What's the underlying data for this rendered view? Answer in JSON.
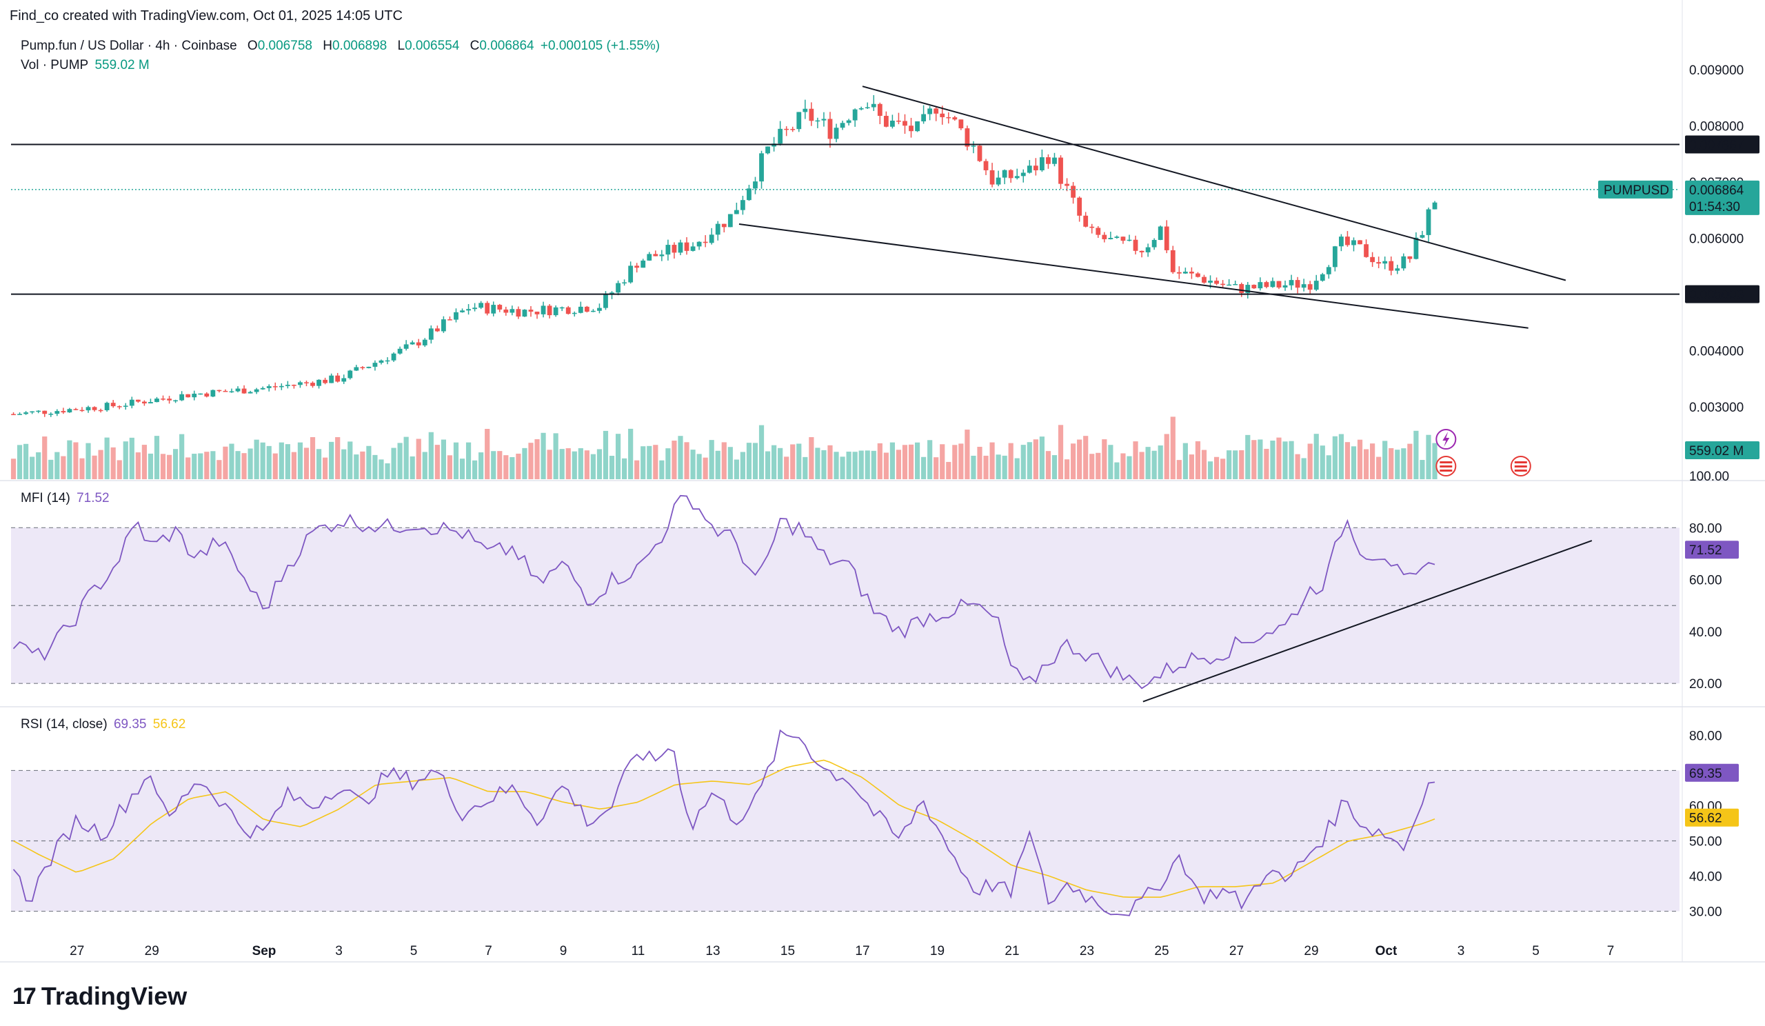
{
  "header": {
    "created_by": "Find_co created with TradingView.com, Oct 01, 2025 14:05 UTC"
  },
  "legend": {
    "symbol": "Pump.fun / US Dollar · 4h · Coinbase",
    "o_label": "O",
    "o": "0.006758",
    "h_label": "H",
    "h": "0.006898",
    "l_label": "L",
    "l": "0.006554",
    "c_label": "C",
    "c": "0.006864",
    "change": "+0.000105 (+1.55%)",
    "vol_label": "Vol · PUMP",
    "vol": "559.02 M",
    "mfi_label": "MFI (14)",
    "mfi": "71.52",
    "rsi_label": "RSI (14, close)",
    "rsi": "69.35",
    "rsi_ma": "56.62"
  },
  "badges": {
    "resistance": "0.007667",
    "support": "0.005003",
    "symbol_tag": "PUMPUSD",
    "last_price": "0.006864",
    "countdown": "01:54:30",
    "volume": "559.02 M",
    "mfi": "71.52",
    "rsi": "69.35",
    "rsi_ma": "56.62"
  },
  "brand": {
    "name": "TradingView",
    "mark": "17"
  },
  "colors": {
    "up": "#26a69a",
    "down": "#ef5350",
    "vol_up": "#8fd4c9",
    "vol_down": "#f5a5a3",
    "mfi": "#7e57c2",
    "rsi": "#7e57c2",
    "rsi_ma": "#f5c518",
    "band": "#ede8f7",
    "grid": "#f0f3fa"
  },
  "chart_data": [
    {
      "type": "candlestick",
      "title": "Pump.fun / US Dollar · 4h · Coinbase",
      "y_ticks": [
        "0.009000",
        "0.008000",
        "0.007000",
        "0.006000",
        "0.005000",
        "0.004000",
        "0.003000"
      ],
      "ylim": [
        0.00165,
        0.0095
      ],
      "x_ticks": [
        "27",
        "29",
        "Sep",
        "3",
        "5",
        "7",
        "9",
        "11",
        "13",
        "15",
        "17",
        "19",
        "21",
        "23",
        "25",
        "27",
        "29",
        "Oct",
        "3",
        "5",
        "7"
      ],
      "x_days": [
        -5,
        -3,
        0,
        2,
        4,
        6,
        8,
        10,
        12,
        14,
        16,
        18,
        20,
        22,
        24,
        26,
        28,
        30,
        32,
        34,
        36
      ],
      "close_path": [
        [
          -6.7,
          0.00287
        ],
        [
          -4,
          0.00302
        ],
        [
          -2,
          0.00322
        ],
        [
          0,
          0.00333
        ],
        [
          2,
          0.0035
        ],
        [
          4,
          0.0041
        ],
        [
          5.5,
          0.00478
        ],
        [
          7,
          0.0047
        ],
        [
          9,
          0.0048
        ],
        [
          10,
          0.0056
        ],
        [
          11.5,
          0.0059
        ],
        [
          12.5,
          0.0064
        ],
        [
          13.5,
          0.0076
        ],
        [
          14.5,
          0.0082
        ],
        [
          15.2,
          0.0079
        ],
        [
          16,
          0.0085
        ],
        [
          16.5,
          0.0081
        ],
        [
          17.5,
          0.0079
        ],
        [
          18,
          0.0084
        ],
        [
          19,
          0.0076
        ],
        [
          19.5,
          0.007
        ],
        [
          20.5,
          0.0072
        ],
        [
          21,
          0.0075
        ],
        [
          21.5,
          0.0068
        ],
        [
          22,
          0.0061
        ],
        [
          22.8,
          0.0059
        ],
        [
          23.5,
          0.0058
        ],
        [
          24,
          0.0062
        ],
        [
          24.3,
          0.0054
        ],
        [
          25,
          0.0053
        ],
        [
          26,
          0.0051
        ],
        [
          27,
          0.00515
        ],
        [
          28,
          0.0052
        ],
        [
          28.8,
          0.0059
        ],
        [
          29.3,
          0.0058
        ],
        [
          30,
          0.0055
        ],
        [
          30.6,
          0.0056
        ],
        [
          31,
          0.0062
        ],
        [
          31.4,
          0.00686
        ]
      ],
      "resistance": 0.007667,
      "support": 0.005003,
      "wedge_upper": [
        [
          16,
          0.0087
        ],
        [
          34.8,
          0.00525
        ]
      ],
      "wedge_lower": [
        [
          12.7,
          0.00625
        ],
        [
          33.8,
          0.0044
        ]
      ],
      "last": 0.006864
    },
    {
      "type": "bar",
      "title": "Vol · PUMP",
      "last": "559.02 M"
    },
    {
      "type": "line",
      "title": "MFI (14)",
      "y_ticks": [
        100,
        80,
        60,
        40,
        20
      ],
      "ylim": [
        15,
        100
      ],
      "bands": [
        20,
        50,
        80
      ],
      "path": [
        [
          -6.7,
          35
        ],
        [
          -6,
          30
        ],
        [
          -5.3,
          40
        ],
        [
          -4.6,
          55
        ],
        [
          -4,
          65
        ],
        [
          -3.4,
          82
        ],
        [
          -3,
          72
        ],
        [
          -2.4,
          79
        ],
        [
          -1.8,
          68
        ],
        [
          -1.2,
          75
        ],
        [
          -0.6,
          62
        ],
        [
          0,
          48
        ],
        [
          0.6,
          65
        ],
        [
          1.3,
          78
        ],
        [
          2,
          83
        ],
        [
          2.6,
          82
        ],
        [
          3.3,
          80
        ],
        [
          4,
          82
        ],
        [
          4.6,
          80
        ],
        [
          5.3,
          78
        ],
        [
          6,
          70
        ],
        [
          6.7,
          72
        ],
        [
          7.3,
          58
        ],
        [
          8,
          66
        ],
        [
          8.7,
          52
        ],
        [
          9.3,
          60
        ],
        [
          10,
          64
        ],
        [
          10.6,
          76
        ],
        [
          11,
          88
        ],
        [
          11.4,
          92
        ],
        [
          12,
          80
        ],
        [
          12.6,
          75
        ],
        [
          13.2,
          58
        ],
        [
          13.8,
          82
        ],
        [
          14.3,
          80
        ],
        [
          15,
          68
        ],
        [
          15.6,
          66
        ],
        [
          16.3,
          48
        ],
        [
          17,
          40
        ],
        [
          17.6,
          45
        ],
        [
          18.3,
          48
        ],
        [
          19,
          50
        ],
        [
          19.6,
          44
        ],
        [
          20,
          25
        ],
        [
          20.4,
          18
        ],
        [
          20.9,
          28
        ],
        [
          21.5,
          35
        ],
        [
          22.2,
          30
        ],
        [
          22.8,
          24
        ],
        [
          23.3,
          20
        ],
        [
          23.8,
          22
        ],
        [
          24.5,
          28
        ],
        [
          25,
          30
        ],
        [
          25.6,
          32
        ],
        [
          26.2,
          36
        ],
        [
          26.8,
          40
        ],
        [
          27.3,
          42
        ],
        [
          27.9,
          55
        ],
        [
          28.4,
          60
        ],
        [
          28.9,
          84
        ],
        [
          29.4,
          70
        ],
        [
          30,
          70
        ],
        [
          30.5,
          58
        ],
        [
          31,
          62
        ],
        [
          31.4,
          71.52
        ]
      ],
      "trendline": [
        [
          23.5,
          13
        ],
        [
          35.5,
          75
        ]
      ],
      "last": 71.52
    },
    {
      "type": "line",
      "title": "RSI (14, close)",
      "y_ticks": [
        80,
        60,
        50,
        40,
        30
      ],
      "ylim": [
        26,
        84
      ],
      "bands": [
        30,
        50,
        70
      ],
      "series": [
        {
          "name": "RSI",
          "path": [
            [
              -6.7,
              42
            ],
            [
              -6.3,
              33
            ],
            [
              -5.7,
              45
            ],
            [
              -5,
              56
            ],
            [
              -4.3,
              52
            ],
            [
              -3.6,
              62
            ],
            [
              -3,
              70
            ],
            [
              -2.6,
              55
            ],
            [
              -1.8,
              68
            ],
            [
              -1.2,
              62
            ],
            [
              -0.6,
              54
            ],
            [
              0,
              52
            ],
            [
              0.6,
              63
            ],
            [
              1.3,
              60
            ],
            [
              2,
              66
            ],
            [
              2.6,
              60
            ],
            [
              3.3,
              69
            ],
            [
              4,
              67
            ],
            [
              4.6,
              70
            ],
            [
              5.3,
              58
            ],
            [
              6,
              62
            ],
            [
              6.7,
              65
            ],
            [
              7.3,
              56
            ],
            [
              8,
              66
            ],
            [
              8.7,
              55
            ],
            [
              9.3,
              60
            ],
            [
              10,
              76
            ],
            [
              10.4,
              72
            ],
            [
              10.9,
              78
            ],
            [
              11.4,
              54
            ],
            [
              12,
              64
            ],
            [
              12.6,
              56
            ],
            [
              13.2,
              62
            ],
            [
              13.8,
              79
            ],
            [
              14.3,
              80
            ],
            [
              15,
              70
            ],
            [
              15.6,
              68
            ],
            [
              16.3,
              58
            ],
            [
              17,
              50
            ],
            [
              17.6,
              62
            ],
            [
              18.3,
              48
            ],
            [
              19,
              36
            ],
            [
              19.6,
              38
            ],
            [
              20,
              34
            ],
            [
              20.4,
              54
            ],
            [
              21,
              32
            ],
            [
              21.5,
              38
            ],
            [
              22.2,
              33
            ],
            [
              22.8,
              30
            ],
            [
              23.3,
              31
            ],
            [
              23.8,
              36
            ],
            [
              24.5,
              46
            ],
            [
              25,
              34
            ],
            [
              25.6,
              36
            ],
            [
              26.2,
              32
            ],
            [
              26.8,
              42
            ],
            [
              27.3,
              38
            ],
            [
              27.9,
              46
            ],
            [
              28.4,
              52
            ],
            [
              28.9,
              62
            ],
            [
              29.4,
              54
            ],
            [
              30,
              52
            ],
            [
              30.5,
              48
            ],
            [
              31,
              64
            ],
            [
              31.4,
              69.35
            ]
          ]
        },
        {
          "name": "RSI-based MA",
          "path": [
            [
              -6.7,
              50
            ],
            [
              -6,
              46
            ],
            [
              -5,
              41
            ],
            [
              -4,
              45
            ],
            [
              -3,
              55
            ],
            [
              -2,
              62
            ],
            [
              -1,
              64
            ],
            [
              0,
              56
            ],
            [
              1,
              54
            ],
            [
              2,
              59
            ],
            [
              3,
              66
            ],
            [
              4,
              67
            ],
            [
              5,
              68
            ],
            [
              6,
              64
            ],
            [
              7,
              64
            ],
            [
              8,
              61
            ],
            [
              9,
              59
            ],
            [
              10,
              61
            ],
            [
              11,
              66
            ],
            [
              12,
              67
            ],
            [
              13,
              66
            ],
            [
              14,
              71
            ],
            [
              15,
              73
            ],
            [
              16,
              68
            ],
            [
              17,
              60
            ],
            [
              18,
              56
            ],
            [
              19,
              50
            ],
            [
              20,
              43
            ],
            [
              21,
              40
            ],
            [
              22,
              36
            ],
            [
              23,
              34
            ],
            [
              24,
              34
            ],
            [
              25,
              37
            ],
            [
              26,
              37
            ],
            [
              27,
              38
            ],
            [
              28,
              44
            ],
            [
              29,
              50
            ],
            [
              30,
              52
            ],
            [
              31,
              55
            ],
            [
              31.4,
              56.62
            ]
          ]
        }
      ],
      "last": 69.35,
      "ma_last": 56.62
    }
  ]
}
